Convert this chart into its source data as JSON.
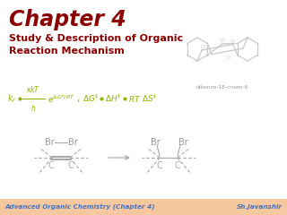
{
  "title": "Chapter 4",
  "subtitle_line1": "Study & Description of Organic",
  "subtitle_line2": "Reaction Mechanism",
  "title_color": "#8B0000",
  "subtitle_color": "#8B0000",
  "bg_color": "#FFFFFF",
  "footer_bg_color": "#F5C8A0",
  "footer_left": "Advanced Organic Chemistry (Chapter 4)",
  "footer_right": "Sh.Javanshir",
  "footer_text_color": "#4472C4",
  "crown_label": "dibenzo-18-crown-6",
  "crown_label_color": "#999999",
  "formula_color": "#8DB600",
  "mol_color": "#AAAAAA",
  "br_color": "#999999"
}
